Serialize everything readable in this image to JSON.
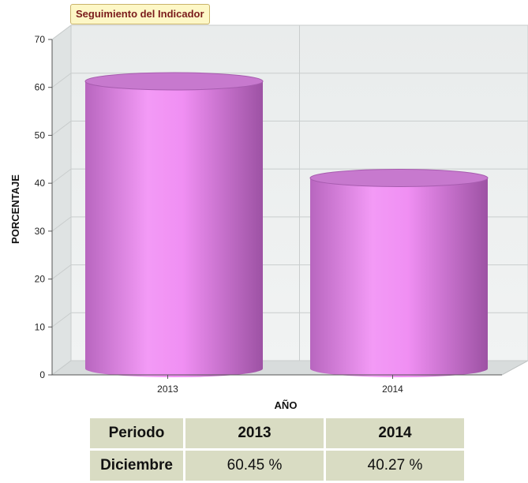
{
  "chart_data": {
    "type": "bar",
    "title": "Seguimiento del Indicador",
    "xlabel": "AÑO",
    "ylabel": "PORCENTAJE",
    "categories": [
      "2013",
      "2014"
    ],
    "values": [
      60.45,
      40.27
    ],
    "ylim": [
      0,
      70
    ],
    "yticks": [
      "0",
      "10",
      "20",
      "30",
      "40",
      "50",
      "60",
      "70"
    ],
    "grid": true,
    "bar_color": "#d47fd8"
  },
  "table": {
    "headers": [
      "Periodo",
      "2013",
      "2014"
    ],
    "rows": [
      [
        "Diciembre",
        "60.45 %",
        "40.27 %"
      ]
    ]
  }
}
